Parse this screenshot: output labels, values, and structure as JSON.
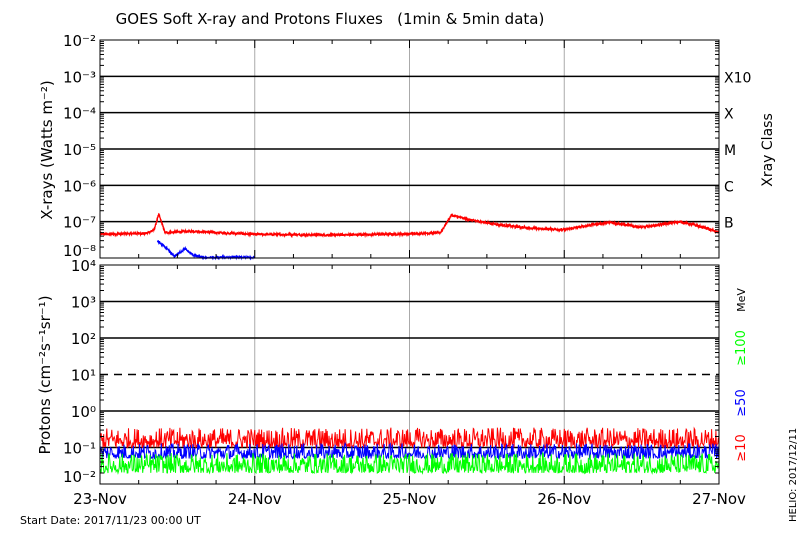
{
  "chart_data": [
    {
      "type": "line",
      "title": "GOES Soft X-ray and Protons Fluxes   (1min & 5min data)",
      "ylabel": "X-rays (Watts m⁻²)",
      "yscale": "log",
      "ylim": [
        1e-08,
        0.01
      ],
      "ytick_labels": [
        "10⁻²",
        "10⁻³",
        "10⁻⁴",
        "10⁻⁵",
        "10⁻⁶",
        "10⁻⁷",
        "10⁻⁸"
      ],
      "right_axis_label": "Xray Class",
      "class_labels": [
        "X10",
        "X",
        "M",
        "C",
        "B"
      ],
      "grid": true,
      "series": [
        {
          "color": "#ff0000",
          "x": [
            23.0,
            23.3,
            23.35,
            23.38,
            23.42,
            23.6,
            23.75,
            24.0,
            24.5,
            25.0,
            25.2,
            25.27,
            25.4,
            25.6,
            25.8,
            26.0,
            26.2,
            26.3,
            26.5,
            26.75,
            26.9,
            27.0
          ],
          "values": [
            4.5e-08,
            4.8e-08,
            6e-08,
            1.6e-07,
            5e-08,
            5.5e-08,
            5e-08,
            4.5e-08,
            4.3e-08,
            4.6e-08,
            5e-08,
            1.5e-07,
            1.1e-07,
            8e-08,
            6.5e-08,
            6e-08,
            8.5e-08,
            9.5e-08,
            7e-08,
            1e-07,
            7e-08,
            5e-08
          ]
        },
        {
          "color": "#0000ff",
          "x": [
            23.37,
            23.42,
            23.48,
            23.55,
            23.6,
            23.68,
            23.8,
            24.0
          ],
          "values": [
            3e-08,
            2e-08,
            1.1e-08,
            1.8e-08,
            1.2e-08,
            1e-08,
            1.05e-08,
            1e-08
          ]
        }
      ]
    },
    {
      "type": "line",
      "ylabel": "Protons (cm⁻²s⁻¹sr⁻¹)",
      "yscale": "log",
      "ylim": [
        0.01,
        10000.0
      ],
      "ytick_labels": [
        "10⁴",
        "10³",
        "10²",
        "10¹",
        "10⁰",
        "10⁻¹",
        "10⁻²"
      ],
      "threshold": 10,
      "grid": true,
      "unit_label": "MeV",
      "series": [
        {
          "name": "≥10",
          "color": "#ff0000",
          "typical": 0.17,
          "range": [
            0.1,
            0.35
          ]
        },
        {
          "name": "≥50",
          "color": "#0000ff",
          "typical": 0.07,
          "range": [
            0.05,
            0.13
          ]
        },
        {
          "name": "≥100",
          "color": "#00ff00",
          "typical": 0.03,
          "range": [
            0.02,
            0.07
          ]
        }
      ]
    }
  ],
  "x_tick_labels": [
    "23-Nov",
    "24-Nov",
    "25-Nov",
    "26-Nov",
    "27-Nov"
  ],
  "xlim": [
    "2017-11-23",
    "2017-11-27"
  ],
  "start_date": "Start Date: 2017/11/23 00:00 UT",
  "credit": "HELIO: 2017/12/11"
}
